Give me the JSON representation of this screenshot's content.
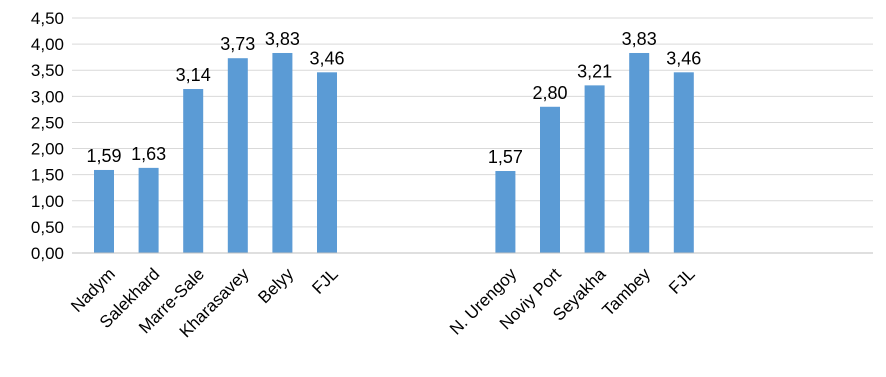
{
  "chart_data": {
    "type": "bar",
    "categories": [
      "Nadym",
      "Salekhard",
      "Marre-Sale",
      "Kharasavey",
      "Belyy",
      "FJL",
      "",
      "",
      "",
      "N. Urengoy",
      "Noviy Port",
      "Seyakha",
      "Tambey",
      "FJL"
    ],
    "values": [
      1.59,
      1.63,
      3.14,
      3.73,
      3.83,
      3.46,
      null,
      null,
      null,
      1.57,
      2.8,
      3.21,
      3.83,
      3.46
    ],
    "data_labels": [
      "1,59",
      "1,63",
      "3,14",
      "3,73",
      "3,83",
      "3,46",
      "",
      "",
      "",
      "1,57",
      "2,80",
      "3,21",
      "3,83",
      "3,46"
    ],
    "ylim": [
      0,
      4.5
    ],
    "yticks": [
      0,
      0.5,
      1,
      1.5,
      2,
      2.5,
      3,
      3.5,
      4,
      4.5
    ],
    "ytick_labels": [
      "0,00",
      "0,50",
      "1,00",
      "1,50",
      "2,00",
      "2,50",
      "3,00",
      "3,50",
      "4,00",
      "4,50"
    ],
    "title": "",
    "xlabel": "",
    "ylabel": "",
    "grid": "horizontal",
    "legend": "none",
    "bar_color": "#5B9BD5",
    "grid_color": "#D9D9D9"
  }
}
